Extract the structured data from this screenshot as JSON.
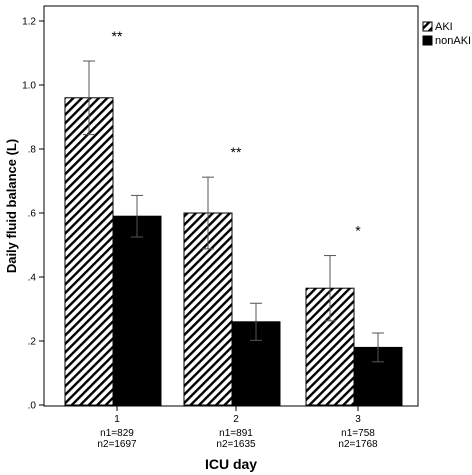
{
  "chart_data": {
    "type": "bar",
    "xlabel": "ICU day",
    "ylabel": "Daily fluid balance (L)",
    "ylim": [
      0,
      1.25
    ],
    "yticks": [
      0,
      0.2,
      0.4,
      0.6,
      0.8,
      1.0,
      1.2
    ],
    "ytick_labels": [
      ".0",
      ".2",
      ".4",
      ".6",
      ".8",
      "1.0",
      "1.2"
    ],
    "categories": [
      "1",
      "2",
      "3"
    ],
    "category_notes": [
      [
        "n1=829",
        "n2=1697"
      ],
      [
        "n1=891",
        "n2=1635"
      ],
      [
        "n1=758",
        "n2=1768"
      ]
    ],
    "series": [
      {
        "name": "AKI",
        "pattern": "diagonal-hatch",
        "values": [
          0.96,
          0.6,
          0.365
        ],
        "error": [
          0.115,
          0.112,
          0.102
        ]
      },
      {
        "name": "nonAKI",
        "pattern": "solid",
        "color": "#000000",
        "values": [
          0.59,
          0.26,
          0.18
        ],
        "error": [
          0.065,
          0.058,
          0.045
        ]
      }
    ],
    "significance": [
      "**",
      "**",
      "*"
    ],
    "legend_position": "top-right",
    "grid": false
  }
}
